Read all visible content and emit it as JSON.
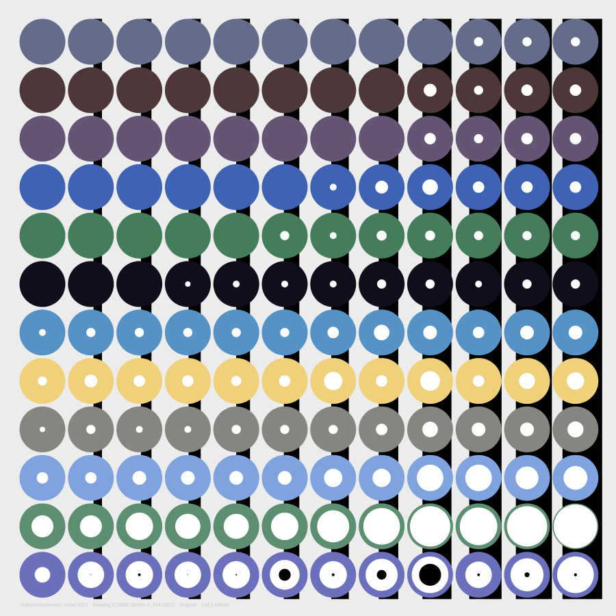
{
  "caption": "Subconsciousness, since 2021 · Drawing 170396 (Series A, Fall 2023) · Original · 1 of 1 edition",
  "grid": {
    "rows": 12,
    "cols": 12
  },
  "colors": {
    "background": "#ececec",
    "stripe": "#000000",
    "hole": "#ffffff",
    "inner_dot": "#000000",
    "rows": [
      "#636d8b",
      "#4e3739",
      "#655474",
      "#3e63b5",
      "#437d5a",
      "#100e1d",
      "#5593c6",
      "#f0d078",
      "#878580",
      "#7fa3de",
      "#5b8f70",
      "#6a70bc"
    ]
  },
  "stripe_lengths": [
    0.0,
    0.04,
    0.09,
    0.13,
    0.17,
    0.21,
    0.26,
    0.31,
    0.54,
    0.62,
    0.71,
    0.8
  ],
  "holes": [
    [
      0,
      0,
      0,
      0,
      0,
      0,
      0,
      0,
      0,
      0.2,
      0.2,
      0.2
    ],
    [
      0,
      0,
      0,
      0,
      0,
      0,
      0,
      0,
      0.28,
      0.2,
      0.25,
      0.25
    ],
    [
      0,
      0,
      0,
      0,
      0,
      0,
      0,
      0,
      0.25,
      0.2,
      0.25,
      0.25
    ],
    [
      0,
      0,
      0,
      0,
      0,
      0,
      0.15,
      0.28,
      0.34,
      0.25,
      0.25,
      0.25
    ],
    [
      0,
      0,
      0,
      0,
      0,
      0.2,
      0.15,
      0.22,
      0.22,
      0.2,
      0.2,
      0.2
    ],
    [
      0,
      0,
      0,
      0.12,
      0.15,
      0.15,
      0.15,
      0.2,
      0.2,
      0.15,
      0.2,
      0.2
    ],
    [
      0.15,
      0.2,
      0.2,
      0.2,
      0.2,
      0.2,
      0.25,
      0.34,
      0.3,
      0.25,
      0.3,
      0.3
    ],
    [
      0.2,
      0.28,
      0.25,
      0.25,
      0.22,
      0.25,
      0.4,
      0.25,
      0.43,
      0.25,
      0.35,
      0.38
    ],
    [
      0.12,
      0.2,
      0.15,
      0.15,
      0.2,
      0.2,
      0.2,
      0.25,
      0.34,
      0.3,
      0.3,
      0.35
    ],
    [
      0.25,
      0.25,
      0.3,
      0.3,
      0.3,
      0.3,
      0.4,
      0.4,
      0.58,
      0.58,
      0.5,
      0.52
    ],
    [
      0.48,
      0.48,
      0.6,
      0.55,
      0.55,
      0.6,
      0.7,
      0.8,
      0.88,
      0.82,
      0.88,
      0.95
    ],
    [
      0.34,
      0.58,
      0.6,
      0.58,
      0.6,
      0.65,
      0.6,
      0.7,
      0.8,
      0.58,
      0.72,
      0.8
    ]
  ],
  "inner_dots": [
    [
      0,
      0.03,
      0.1,
      0.03,
      0.05,
      0.4,
      0.1,
      0.3,
      0.6,
      0.1,
      0.15,
      0.08
    ]
  ]
}
